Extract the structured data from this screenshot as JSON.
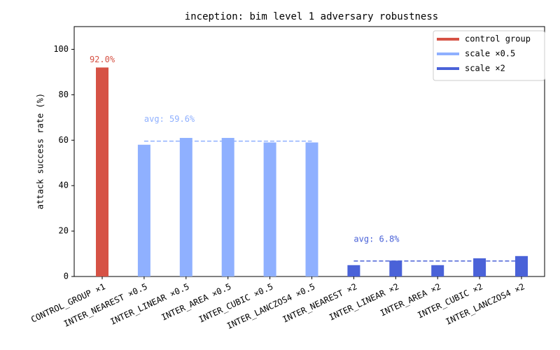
{
  "chart_data": {
    "type": "bar",
    "title": "inception: bim level 1 adversary robustness",
    "ylabel": "attack success rate (%)",
    "categories": [
      "CONTROL_GROUP ×1",
      "INTER_NEAREST ×0.5",
      "INTER_LINEAR ×0.5",
      "INTER_AREA ×0.5",
      "INTER_CUBIC ×0.5",
      "INTER_LANCZOS4 ×0.5",
      "INTER_NEAREST ×2",
      "INTER_LINEAR ×2",
      "INTER_AREA ×2",
      "INTER_CUBIC ×2",
      "INTER_LANCZOS4 ×2"
    ],
    "series": [
      {
        "name": "control group",
        "color": "#d65245",
        "values": [
          92,
          null,
          null,
          null,
          null,
          null,
          null,
          null,
          null,
          null,
          null
        ],
        "value_labels": [
          "92.0%",
          null,
          null,
          null,
          null,
          null,
          null,
          null,
          null,
          null,
          null
        ]
      },
      {
        "name": "scale ×0.5",
        "color": "#8fb0ff",
        "values": [
          null,
          58,
          61,
          61,
          59,
          59,
          null,
          null,
          null,
          null,
          null
        ]
      },
      {
        "name": "scale ×2",
        "color": "#4a62d8",
        "values": [
          null,
          null,
          null,
          null,
          null,
          null,
          5,
          7,
          5,
          8,
          9
        ]
      }
    ],
    "averages": [
      {
        "label": "avg: 59.6%",
        "value": 59.6,
        "series": 1
      },
      {
        "label": "avg: 6.8%",
        "value": 6.8,
        "series": 2
      }
    ],
    "ylim": [
      0,
      110
    ],
    "yticks": [
      0,
      20,
      40,
      60,
      80,
      100
    ],
    "grid": false,
    "legend": "upper right"
  }
}
